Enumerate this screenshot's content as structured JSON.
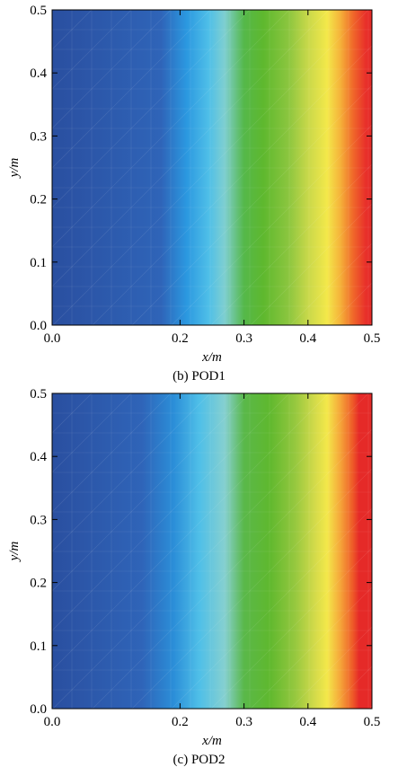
{
  "chart_data": [
    {
      "type": "heatmap",
      "caption": "(b) POD1",
      "xlabel": "x/m",
      "ylabel": "y/m",
      "xlim": [
        0,
        0.5
      ],
      "ylim": [
        0,
        0.5
      ],
      "x_ticks": [
        "0.0",
        "0.2",
        "0.3",
        "0.4",
        "0.5"
      ],
      "x_tick_values": [
        0,
        0.2,
        0.3,
        0.4,
        0.5
      ],
      "y_ticks": [
        "0.0",
        "0.1",
        "0.2",
        "0.3",
        "0.4",
        "0.5"
      ],
      "y_tick_values": [
        0,
        0.1,
        0.2,
        0.3,
        0.4,
        0.5
      ],
      "grid": false,
      "colorscale": [
        {
          "x": 0.0,
          "color": "#2a4fa0"
        },
        {
          "x": 0.17,
          "color": "#2f64b8"
        },
        {
          "x": 0.21,
          "color": "#2b98e0"
        },
        {
          "x": 0.245,
          "color": "#4fbfe8"
        },
        {
          "x": 0.27,
          "color": "#7fcfd0"
        },
        {
          "x": 0.3,
          "color": "#55b84a"
        },
        {
          "x": 0.33,
          "color": "#5eb82e"
        },
        {
          "x": 0.37,
          "color": "#8cc63f"
        },
        {
          "x": 0.4,
          "color": "#c8d84a"
        },
        {
          "x": 0.43,
          "color": "#f4e84a"
        },
        {
          "x": 0.45,
          "color": "#f5b43a"
        },
        {
          "x": 0.47,
          "color": "#f06a2a"
        },
        {
          "x": 0.49,
          "color": "#e8302a"
        },
        {
          "x": 0.5,
          "color": "#e52a28"
        }
      ]
    },
    {
      "type": "heatmap",
      "caption": "(c) POD2",
      "xlabel": "x/m",
      "ylabel": "y/m",
      "xlim": [
        0,
        0.5
      ],
      "ylim": [
        0,
        0.5
      ],
      "x_ticks": [
        "0.0",
        "0.2",
        "0.3",
        "0.4",
        "0.5"
      ],
      "x_tick_values": [
        0,
        0.2,
        0.3,
        0.4,
        0.5
      ],
      "y_ticks": [
        "0.0",
        "0.1",
        "0.2",
        "0.3",
        "0.4",
        "0.5"
      ],
      "y_tick_values": [
        0,
        0.1,
        0.2,
        0.3,
        0.4,
        0.5
      ],
      "grid": false,
      "colorscale": [
        {
          "x": 0.0,
          "color": "#2a4fa0"
        },
        {
          "x": 0.14,
          "color": "#2f64b8"
        },
        {
          "x": 0.19,
          "color": "#2b8ed8"
        },
        {
          "x": 0.23,
          "color": "#4fbfe8"
        },
        {
          "x": 0.27,
          "color": "#86d0d0"
        },
        {
          "x": 0.3,
          "color": "#5ab84a"
        },
        {
          "x": 0.34,
          "color": "#5fb82e"
        },
        {
          "x": 0.38,
          "color": "#96c83f"
        },
        {
          "x": 0.41,
          "color": "#d2da4a"
        },
        {
          "x": 0.43,
          "color": "#f4e84a"
        },
        {
          "x": 0.45,
          "color": "#f5a83a"
        },
        {
          "x": 0.47,
          "color": "#ee5a28"
        },
        {
          "x": 0.48,
          "color": "#e52a28"
        },
        {
          "x": 0.5,
          "color": "#e52a28"
        }
      ]
    }
  ]
}
